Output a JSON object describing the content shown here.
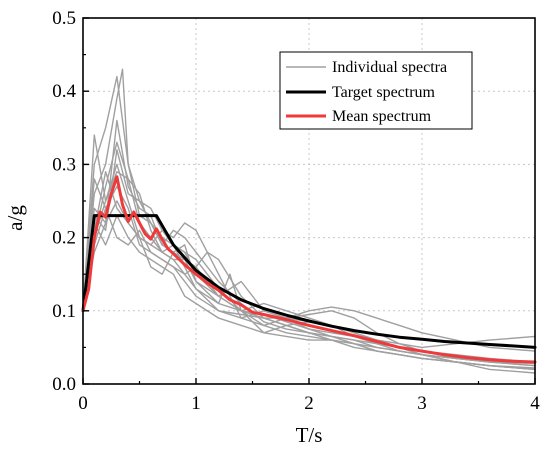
{
  "chart_data": {
    "type": "line",
    "xlabel": "T/s",
    "ylabel": "a/g",
    "xlim": [
      0,
      4
    ],
    "ylim": [
      0,
      0.5
    ],
    "x_ticks": [
      0,
      1,
      2,
      3,
      4
    ],
    "x_tick_labels": [
      "0",
      "1",
      "2",
      "3",
      "4"
    ],
    "y_ticks": [
      0,
      0.1,
      0.2,
      0.3,
      0.4,
      0.5
    ],
    "y_tick_labels": [
      "0.0",
      "0.1",
      "0.2",
      "0.3",
      "0.4",
      "0.5"
    ],
    "grid": true,
    "legend_position": "top-right",
    "legend": [
      "Individual spectra",
      "Target spectrum",
      "Mean spectrum"
    ],
    "colors": {
      "individual": "#a0a0a0",
      "target": "#000000",
      "mean": "#ee3a3a"
    },
    "series": [
      {
        "name": "Target spectrum",
        "role": "target",
        "x": [
          0,
          0.1,
          0.65,
          0.8,
          1.0,
          1.2,
          1.4,
          1.6,
          1.8,
          2.0,
          2.2,
          2.4,
          2.6,
          2.8,
          3.0,
          3.2,
          3.4,
          3.6,
          3.8,
          4.0
        ],
        "values": [
          0.1,
          0.23,
          0.23,
          0.19,
          0.155,
          0.132,
          0.115,
          0.103,
          0.094,
          0.086,
          0.079,
          0.073,
          0.068,
          0.064,
          0.061,
          0.058,
          0.056,
          0.054,
          0.052,
          0.05
        ]
      },
      {
        "name": "Mean spectrum",
        "role": "mean",
        "x": [
          0,
          0.05,
          0.1,
          0.15,
          0.2,
          0.25,
          0.3,
          0.35,
          0.4,
          0.45,
          0.5,
          0.55,
          0.6,
          0.65,
          0.7,
          0.75,
          0.8,
          0.9,
          1.0,
          1.1,
          1.2,
          1.3,
          1.4,
          1.5,
          1.6,
          1.8,
          2.0,
          2.2,
          2.4,
          2.6,
          2.8,
          3.0,
          3.2,
          3.4,
          3.6,
          3.8,
          4.0
        ],
        "values": [
          0.1,
          0.13,
          0.2,
          0.235,
          0.228,
          0.26,
          0.283,
          0.245,
          0.222,
          0.235,
          0.22,
          0.205,
          0.198,
          0.212,
          0.198,
          0.185,
          0.178,
          0.163,
          0.15,
          0.138,
          0.128,
          0.115,
          0.108,
          0.098,
          0.095,
          0.088,
          0.08,
          0.073,
          0.066,
          0.058,
          0.05,
          0.045,
          0.04,
          0.036,
          0.033,
          0.031,
          0.03
        ]
      },
      {
        "name": "Individual spectra",
        "role": "individual",
        "x": [
          0,
          0.1,
          0.2,
          0.3,
          0.35,
          0.4,
          0.5,
          0.6,
          0.7,
          0.8,
          0.9,
          1.0,
          1.2,
          1.4,
          1.6,
          1.8,
          2.0,
          2.2,
          2.4,
          2.6,
          2.8,
          3.0,
          3.3,
          3.6,
          4.0
        ],
        "values": [
          0.1,
          0.26,
          0.3,
          0.39,
          0.43,
          0.3,
          0.25,
          0.24,
          0.21,
          0.19,
          0.18,
          0.15,
          0.12,
          0.1,
          0.08,
          0.07,
          0.065,
          0.06,
          0.055,
          0.05,
          0.045,
          0.04,
          0.03,
          0.025,
          0.02
        ]
      },
      {
        "role": "individual",
        "x": [
          0,
          0.1,
          0.2,
          0.3,
          0.4,
          0.5,
          0.6,
          0.7,
          0.8,
          0.9,
          1.0,
          1.1,
          1.2,
          1.4,
          1.6,
          1.8,
          2.0,
          2.2,
          2.4,
          2.6,
          2.8,
          3.0,
          3.3,
          3.6,
          4.0
        ],
        "values": [
          0.1,
          0.2,
          0.27,
          0.33,
          0.28,
          0.22,
          0.2,
          0.18,
          0.17,
          0.17,
          0.16,
          0.18,
          0.17,
          0.12,
          0.09,
          0.08,
          0.07,
          0.065,
          0.055,
          0.045,
          0.04,
          0.035,
          0.03,
          0.025,
          0.02
        ]
      },
      {
        "role": "individual",
        "x": [
          0,
          0.1,
          0.2,
          0.3,
          0.4,
          0.5,
          0.6,
          0.7,
          0.8,
          0.9,
          1.0,
          1.2,
          1.4,
          1.6,
          1.8,
          2.0,
          2.2,
          2.4,
          2.6,
          2.8,
          3.0,
          3.3,
          3.6,
          4.0
        ],
        "values": [
          0.1,
          0.34,
          0.25,
          0.3,
          0.25,
          0.2,
          0.19,
          0.21,
          0.2,
          0.22,
          0.21,
          0.15,
          0.09,
          0.08,
          0.09,
          0.1,
          0.105,
          0.1,
          0.09,
          0.08,
          0.07,
          0.06,
          0.05,
          0.045
        ]
      },
      {
        "role": "individual",
        "x": [
          0,
          0.1,
          0.2,
          0.3,
          0.4,
          0.5,
          0.6,
          0.7,
          0.8,
          0.9,
          1.0,
          1.2,
          1.3,
          1.4,
          1.6,
          1.8,
          2.0,
          2.2,
          2.4,
          2.6,
          2.8,
          3.0,
          3.3,
          3.6,
          4.0
        ],
        "values": [
          0.1,
          0.24,
          0.22,
          0.36,
          0.27,
          0.24,
          0.23,
          0.19,
          0.18,
          0.17,
          0.14,
          0.11,
          0.15,
          0.1,
          0.07,
          0.08,
          0.085,
          0.08,
          0.07,
          0.06,
          0.055,
          0.05,
          0.055,
          0.06,
          0.065
        ]
      },
      {
        "role": "individual",
        "x": [
          0,
          0.1,
          0.2,
          0.3,
          0.4,
          0.5,
          0.6,
          0.7,
          0.8,
          0.9,
          1.0,
          1.2,
          1.4,
          1.6,
          1.8,
          2.0,
          2.2,
          2.4,
          2.6,
          2.8,
          3.0,
          3.3,
          3.6,
          4.0
        ],
        "values": [
          0.1,
          0.21,
          0.29,
          0.24,
          0.22,
          0.2,
          0.16,
          0.15,
          0.18,
          0.19,
          0.14,
          0.12,
          0.14,
          0.1,
          0.09,
          0.075,
          0.07,
          0.065,
          0.06,
          0.05,
          0.04,
          0.035,
          0.03,
          0.025
        ]
      },
      {
        "role": "individual",
        "x": [
          0,
          0.1,
          0.2,
          0.3,
          0.4,
          0.5,
          0.6,
          0.7,
          0.8,
          0.9,
          1.0,
          1.2,
          1.4,
          1.6,
          1.8,
          2.0,
          2.2,
          2.4,
          2.6,
          2.8,
          3.0,
          3.3,
          3.6,
          4.0
        ],
        "values": [
          0.1,
          0.28,
          0.24,
          0.2,
          0.19,
          0.21,
          0.18,
          0.17,
          0.16,
          0.15,
          0.13,
          0.1,
          0.09,
          0.1,
          0.09,
          0.085,
          0.08,
          0.07,
          0.06,
          0.05,
          0.04,
          0.03,
          0.02,
          0.015
        ]
      },
      {
        "role": "individual",
        "x": [
          0,
          0.1,
          0.2,
          0.3,
          0.4,
          0.5,
          0.6,
          0.7,
          0.8,
          0.9,
          1.0,
          1.2,
          1.4,
          1.6,
          1.8,
          2.0,
          2.2,
          2.4,
          2.6,
          2.8,
          3.0,
          3.3,
          3.6,
          4.0
        ],
        "values": [
          0.1,
          0.19,
          0.24,
          0.27,
          0.24,
          0.19,
          0.18,
          0.17,
          0.16,
          0.14,
          0.12,
          0.1,
          0.095,
          0.09,
          0.09,
          0.095,
          0.1,
          0.09,
          0.07,
          0.055,
          0.045,
          0.035,
          0.03,
          0.025
        ]
      },
      {
        "role": "individual",
        "x": [
          0,
          0.1,
          0.2,
          0.3,
          0.4,
          0.5,
          0.6,
          0.7,
          0.8,
          0.9,
          1.0,
          1.2,
          1.4,
          1.6,
          1.8,
          2.0,
          2.2,
          2.4,
          2.6,
          2.8,
          3.0,
          3.3,
          3.6,
          4.0
        ],
        "values": [
          0.1,
          0.23,
          0.21,
          0.32,
          0.26,
          0.25,
          0.22,
          0.2,
          0.19,
          0.16,
          0.13,
          0.11,
          0.1,
          0.11,
          0.1,
          0.09,
          0.08,
          0.065,
          0.055,
          0.045,
          0.04,
          0.035,
          0.03,
          0.028
        ]
      },
      {
        "role": "individual",
        "x": [
          0,
          0.1,
          0.2,
          0.3,
          0.4,
          0.5,
          0.6,
          0.7,
          0.8,
          0.9,
          1.0,
          1.2,
          1.4,
          1.6,
          1.8,
          2.0,
          2.2,
          2.4,
          2.6,
          2.8,
          3.0,
          3.3,
          3.6,
          4.0
        ],
        "values": [
          0.1,
          0.22,
          0.19,
          0.23,
          0.2,
          0.18,
          0.17,
          0.16,
          0.15,
          0.12,
          0.11,
          0.09,
          0.08,
          0.07,
          0.065,
          0.06,
          0.06,
          0.055,
          0.045,
          0.04,
          0.035,
          0.03,
          0.025,
          0.02
        ]
      },
      {
        "role": "individual",
        "x": [
          0,
          0.1,
          0.2,
          0.3,
          0.4,
          0.5,
          0.6,
          0.7,
          0.8,
          0.9,
          1.0,
          1.2,
          1.4,
          1.6,
          1.8,
          2.0,
          2.2,
          2.4,
          2.6,
          2.8,
          3.0,
          3.3,
          3.6,
          4.0
        ],
        "values": [
          0.1,
          0.3,
          0.35,
          0.42,
          0.3,
          0.23,
          0.22,
          0.19,
          0.21,
          0.2,
          0.18,
          0.14,
          0.11,
          0.085,
          0.075,
          0.07,
          0.065,
          0.06,
          0.055,
          0.05,
          0.045,
          0.04,
          0.035,
          0.03
        ]
      },
      {
        "role": "individual",
        "x": [
          0,
          0.1,
          0.2,
          0.3,
          0.4,
          0.5,
          0.6,
          0.7,
          0.8,
          0.9,
          1.0,
          1.2,
          1.4,
          1.6,
          1.8,
          2.0,
          2.2,
          2.4,
          2.6,
          2.8,
          3.0,
          3.3,
          3.6,
          4.0
        ],
        "values": [
          0.1,
          0.2,
          0.25,
          0.29,
          0.28,
          0.26,
          0.21,
          0.18,
          0.17,
          0.15,
          0.16,
          0.12,
          0.1,
          0.095,
          0.085,
          0.075,
          0.065,
          0.06,
          0.05,
          0.045,
          0.04,
          0.035,
          0.032,
          0.03
        ]
      },
      {
        "role": "individual",
        "x": [
          0,
          0.1,
          0.2,
          0.3,
          0.4,
          0.5,
          0.6,
          0.7,
          0.8,
          0.9,
          1.0,
          1.2,
          1.4,
          1.6,
          1.8,
          2.0,
          2.2,
          2.4,
          2.6,
          2.8,
          3.0,
          3.3,
          3.6,
          4.0
        ],
        "values": [
          0.1,
          0.18,
          0.22,
          0.25,
          0.22,
          0.2,
          0.19,
          0.18,
          0.19,
          0.18,
          0.17,
          0.13,
          0.1,
          0.09,
          0.08,
          0.07,
          0.06,
          0.05,
          0.045,
          0.04,
          0.035,
          0.03,
          0.025,
          0.022
        ]
      }
    ]
  }
}
